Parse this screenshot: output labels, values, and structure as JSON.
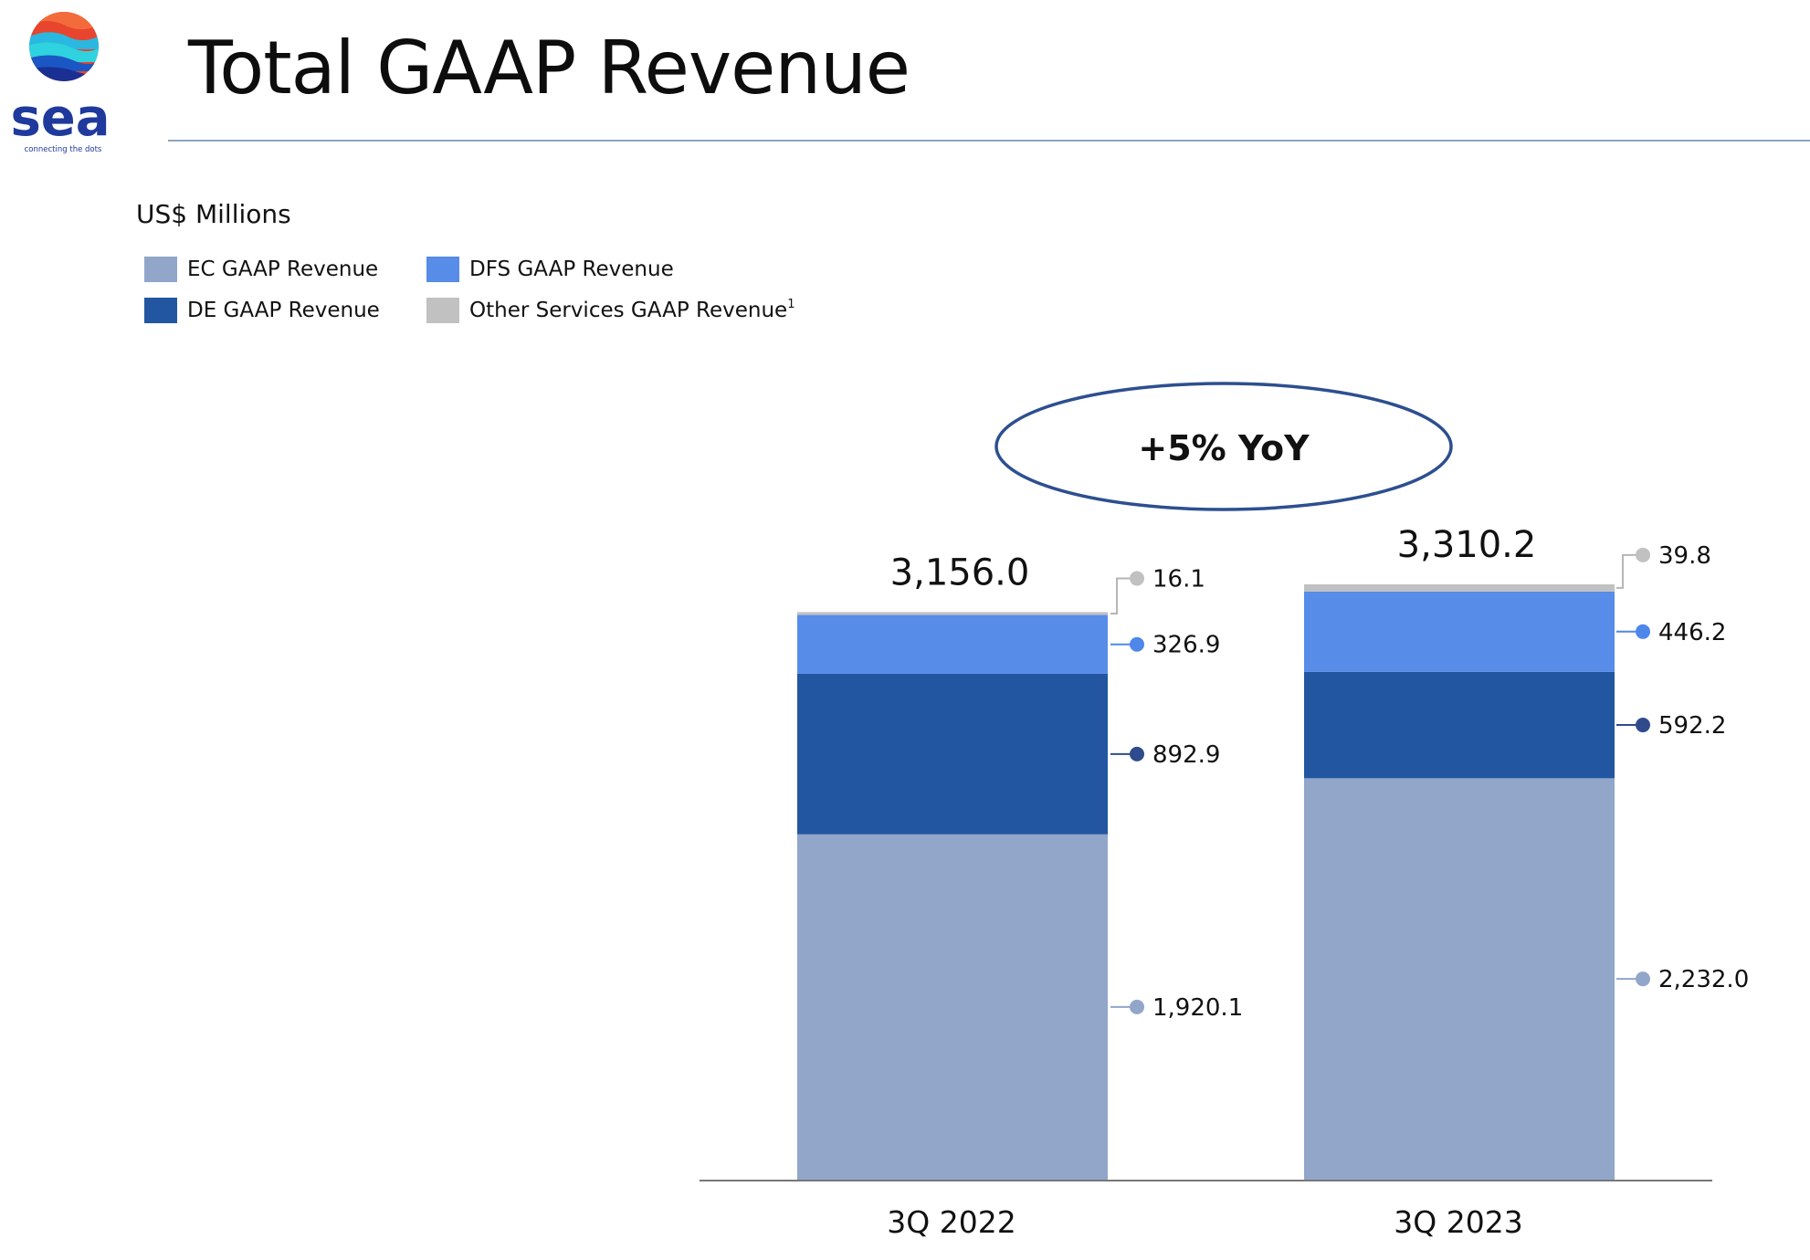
{
  "page": {
    "title": "Total GAAP Revenue",
    "units": "US$ Millions"
  },
  "logo": {
    "wordmark": "sea",
    "tagline": "connecting the dots"
  },
  "colors": {
    "EC": "#91a6c9",
    "DE": "#2256a0",
    "DFS": "#578ce8",
    "Other": "#c1c1c1",
    "axis": "#777777",
    "callout_border": "#2d4f8f",
    "rule": "#8fa3c4"
  },
  "chart_data": {
    "type": "bar",
    "stacked": true,
    "categories": [
      "3Q 2022",
      "3Q 2023"
    ],
    "series": [
      {
        "name": "EC GAAP Revenue",
        "values": [
          1920.1,
          2232.0
        ],
        "labels": [
          "1,920.1",
          "2,232.0"
        ],
        "color": "#91a6c9"
      },
      {
        "name": "DE GAAP Revenue",
        "values": [
          892.9,
          592.2
        ],
        "labels": [
          "892.9",
          "592.2"
        ],
        "color": "#2256a0"
      },
      {
        "name": "DFS GAAP Revenue",
        "values": [
          326.9,
          446.2
        ],
        "labels": [
          "326.9",
          "446.2"
        ],
        "color": "#578ce8"
      },
      {
        "name": "Other Services GAAP Revenue",
        "values": [
          16.1,
          39.8
        ],
        "labels": [
          "16.1",
          "39.8"
        ],
        "color": "#c1c1c1"
      }
    ],
    "totals": [
      3156.0,
      3310.2
    ],
    "total_labels": [
      "3,156.0",
      "3,310.2"
    ],
    "legend": {
      "entries": [
        "EC GAAP Revenue",
        "DFS GAAP Revenue",
        "DE GAAP Revenue",
        "Other Services GAAP Revenue"
      ],
      "footnote_marker": "1",
      "placement": "top-left"
    },
    "annotation": "+5% YoY",
    "ylim": [
      0,
      3310.2
    ],
    "grid": false,
    "title": "",
    "xlabel": "",
    "ylabel": ""
  }
}
